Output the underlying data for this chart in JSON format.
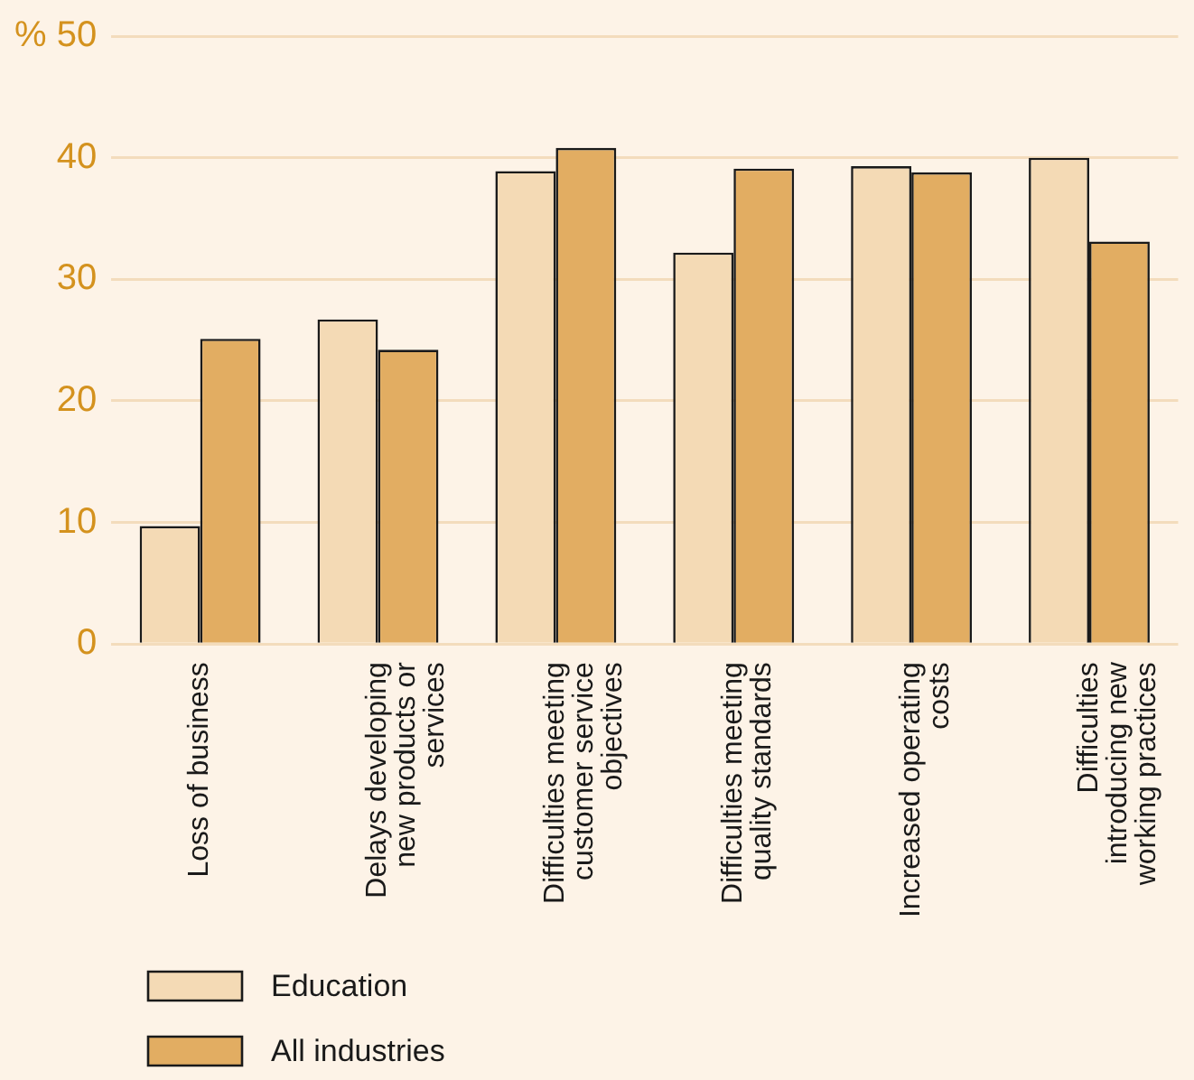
{
  "chart_data": {
    "type": "bar",
    "categories": [
      "Loss of business",
      "Delays developing new products or services",
      "Difficulties meeting customer service objectives",
      "Difficulties meeting quality standards",
      "Increased operating costs",
      "Difficulties introducing new working practices"
    ],
    "series": [
      {
        "name": "Education",
        "color": "#f4dab5",
        "values": [
          9.7,
          26.7,
          38.9,
          32.2,
          39.3,
          40.0
        ]
      },
      {
        "name": "All industries",
        "color": "#e2ad62",
        "values": [
          25.1,
          24.2,
          40.8,
          39.1,
          38.8,
          33.1
        ]
      }
    ],
    "ylim": [
      0,
      50
    ],
    "yticks": [
      0,
      10,
      20,
      30,
      {
        "value": 50,
        "label": "% 50"
      },
      40
    ],
    "grid": "y",
    "legend": "bottom left"
  }
}
